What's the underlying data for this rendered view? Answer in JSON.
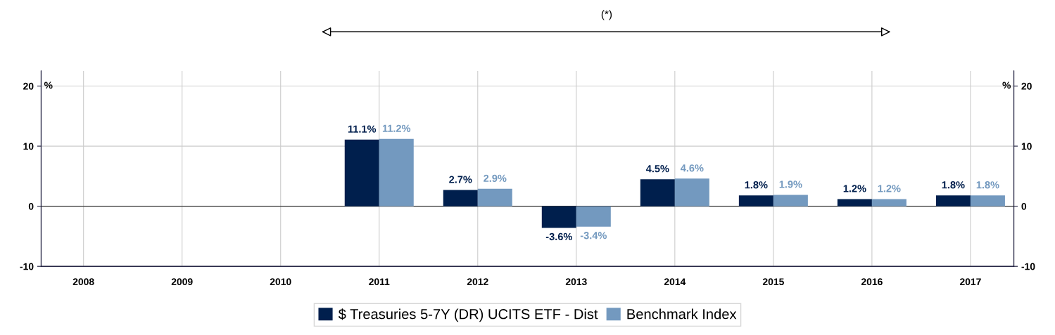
{
  "chart_data": {
    "type": "bar",
    "categories": [
      "2008",
      "2009",
      "2010",
      "2011",
      "2012",
      "2013",
      "2014",
      "2015",
      "2016",
      "2017"
    ],
    "series": [
      {
        "name": "$ Treasuries 5-7Y (DR) UCITS ETF - Dist",
        "color": "#001f4d",
        "values": [
          null,
          null,
          null,
          11.1,
          2.7,
          -3.6,
          4.5,
          1.8,
          1.2,
          1.8
        ],
        "value_labels": [
          null,
          null,
          null,
          "11.1%",
          "2.7%",
          "-3.6%",
          "4.5%",
          "1.8%",
          "1.2%",
          "1.8%"
        ]
      },
      {
        "name": "Benchmark Index",
        "color": "#7399bf",
        "values": [
          null,
          null,
          null,
          11.2,
          2.9,
          -3.4,
          4.6,
          1.9,
          1.2,
          1.8
        ],
        "value_labels": [
          null,
          null,
          null,
          "11.2%",
          "2.9%",
          "-3.4%",
          "4.6%",
          "1.9%",
          "1.2%",
          "1.8%"
        ]
      }
    ],
    "ylabel": "%",
    "y2label": "%",
    "ylim": [
      -10,
      22.5
    ],
    "yticks": [
      -10,
      0,
      10,
      20
    ],
    "y2lim": [
      -10,
      22.5
    ],
    "y2ticks": [
      -10,
      0,
      10,
      20
    ],
    "annotations": [
      "(*)"
    ],
    "grid": true,
    "legend": "bottom"
  }
}
